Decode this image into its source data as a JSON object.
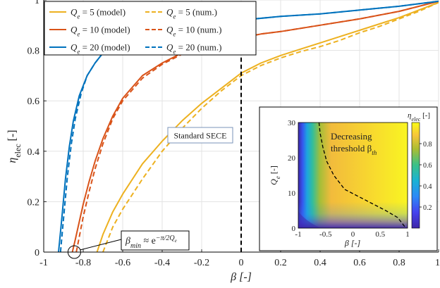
{
  "chart_data": {
    "type": "line",
    "xlabel": "β [-]",
    "ylabel": "η_elec [-]",
    "xlim": [
      -1,
      1
    ],
    "ylim": [
      0,
      1
    ],
    "xticks": [
      "-1",
      "-0.8",
      "-0.6",
      "-0.4",
      "-0.2",
      "0",
      "0.2",
      "0.4",
      "0.6",
      "0.8",
      "1"
    ],
    "yticks": [
      "0",
      "0.2",
      "0.4",
      "0.6",
      "0.8",
      "1"
    ],
    "grid": true,
    "legend_position": "top-left",
    "colors": {
      "q5": "#EDB120",
      "q10": "#D95319",
      "q20": "#0072BD"
    },
    "series": [
      {
        "name": "Qe = 5 (model)",
        "label_main": "Qe = 5",
        "label_tag": "(model)",
        "color": "#EDB120",
        "dash": false,
        "x": [
          -0.73,
          -0.7,
          -0.65,
          -0.6,
          -0.5,
          -0.4,
          -0.3,
          -0.2,
          -0.1,
          0.0,
          0.1,
          0.2,
          0.3,
          0.4,
          0.5,
          0.6,
          0.7,
          0.8,
          0.9,
          1.0
        ],
        "y": [
          0.0,
          0.07,
          0.16,
          0.23,
          0.35,
          0.44,
          0.52,
          0.59,
          0.65,
          0.71,
          0.75,
          0.78,
          0.805,
          0.83,
          0.855,
          0.88,
          0.905,
          0.93,
          0.96,
          0.99
        ]
      },
      {
        "name": "Qe = 5 (num.)",
        "label_main": "Qe = 5",
        "label_tag": "(num.)",
        "color": "#EDB120",
        "dash": true,
        "x": [
          -0.7,
          -0.65,
          -0.6,
          -0.5,
          -0.4,
          -0.3,
          -0.2,
          -0.1,
          0.0,
          0.1,
          0.2,
          0.3,
          0.4,
          0.5,
          0.6,
          0.7,
          0.8,
          0.9,
          1.0
        ],
        "y": [
          0.0,
          0.1,
          0.17,
          0.29,
          0.4,
          0.49,
          0.57,
          0.64,
          0.7,
          0.74,
          0.77,
          0.795,
          0.815,
          0.84,
          0.87,
          0.895,
          0.925,
          0.955,
          0.99
        ]
      },
      {
        "name": "Qe = 10 (model)",
        "label_main": "Qe = 10",
        "label_tag": "(model)",
        "color": "#D95319",
        "dash": false,
        "x": [
          -0.855,
          -0.84,
          -0.82,
          -0.8,
          -0.77,
          -0.74,
          -0.7,
          -0.65,
          -0.6,
          -0.5,
          -0.4,
          -0.3,
          -0.2,
          -0.1,
          0.0,
          0.1,
          0.2,
          0.4,
          0.6,
          0.8,
          1.0
        ],
        "y": [
          0.0,
          0.05,
          0.12,
          0.19,
          0.28,
          0.36,
          0.45,
          0.54,
          0.61,
          0.7,
          0.75,
          0.79,
          0.815,
          0.835,
          0.85,
          0.865,
          0.875,
          0.9,
          0.925,
          0.955,
          0.995
        ]
      },
      {
        "name": "Qe = 10 (num.)",
        "label_main": "Qe = 10",
        "label_tag": "(num.)",
        "color": "#D95319",
        "dash": true,
        "x": [
          -0.835,
          -0.82,
          -0.8,
          -0.77,
          -0.74,
          -0.7,
          -0.65,
          -0.6,
          -0.5,
          -0.4,
          -0.3,
          -0.2,
          -0.1,
          0.0,
          0.1,
          0.2,
          0.4,
          0.6,
          0.8,
          1.0
        ],
        "y": [
          0.0,
          0.06,
          0.14,
          0.24,
          0.33,
          0.43,
          0.53,
          0.6,
          0.69,
          0.745,
          0.785,
          0.81,
          0.83,
          0.85,
          0.865,
          0.875,
          0.9,
          0.925,
          0.955,
          0.995
        ]
      },
      {
        "name": "Qe = 20 (model)",
        "label_main": "Qe = 20",
        "label_tag": "(model)",
        "color": "#0072BD",
        "dash": false,
        "x": [
          -0.925,
          -0.91,
          -0.89,
          -0.87,
          -0.85,
          -0.82,
          -0.78,
          -0.74,
          -0.7,
          -0.65,
          -0.6,
          -0.5,
          -0.4,
          -0.3,
          -0.2,
          -0.1,
          0.0,
          0.2,
          0.4,
          0.6,
          0.8,
          1.0
        ],
        "y": [
          0.0,
          0.12,
          0.29,
          0.42,
          0.52,
          0.62,
          0.7,
          0.75,
          0.79,
          0.82,
          0.84,
          0.87,
          0.89,
          0.9,
          0.91,
          0.915,
          0.92,
          0.935,
          0.945,
          0.96,
          0.975,
          0.995
        ]
      },
      {
        "name": "Qe = 20 (num.)",
        "label_main": "Qe = 20",
        "label_tag": "(num.)",
        "color": "#0072BD",
        "dash": true,
        "x": [
          -0.915,
          -0.9,
          -0.88,
          -0.86,
          -0.84,
          -0.81,
          -0.78,
          -0.74,
          -0.7,
          -0.65,
          -0.6,
          -0.5,
          -0.4,
          -0.3,
          -0.2,
          -0.1,
          0.0,
          0.2,
          0.4,
          0.6,
          0.8,
          1.0
        ],
        "y": [
          0.0,
          0.13,
          0.3,
          0.43,
          0.53,
          0.63,
          0.7,
          0.75,
          0.79,
          0.82,
          0.84,
          0.87,
          0.89,
          0.9,
          0.91,
          0.915,
          0.92,
          0.935,
          0.945,
          0.96,
          0.975,
          0.995
        ]
      }
    ],
    "vertical_line": {
      "x": 0,
      "style": "dashed",
      "color": "#000000"
    },
    "annotations": {
      "standard_sece": "Standard SECE",
      "beta_min_lhs": "β",
      "beta_min_sub": "min",
      "beta_min_rhs": " ≈ e",
      "beta_min_exp": "−π/2Q",
      "beta_min_exp_sub": "e",
      "circle_at": {
        "x": -0.845,
        "y": 0.0
      }
    },
    "inset": {
      "type": "heatmap",
      "xlabel": "β [-]",
      "ylabel": "Q_e [-]",
      "xlim": [
        -1,
        1
      ],
      "ylim": [
        0,
        30
      ],
      "xticks": [
        "-1",
        "-0.5",
        "0",
        "0.5",
        "1"
      ],
      "yticks": [
        "0",
        "10",
        "20",
        "30"
      ],
      "colorbar_label": "η_elec [-]",
      "colorbar_ticks": [
        "0.2",
        "0.4",
        "0.6",
        "0.8"
      ],
      "annotation_line1": "Decreasing",
      "annotation_line2": "threshold β",
      "annotation_sub": "th",
      "threshold_beta": [
        -0.62,
        -0.6,
        -0.55,
        -0.48,
        -0.35,
        -0.15,
        0.1,
        0.35,
        0.6,
        0.82,
        0.97
      ],
      "threshold_qe": [
        30,
        27,
        23,
        19,
        15,
        11,
        9,
        7,
        5,
        3,
        0
      ]
    }
  }
}
